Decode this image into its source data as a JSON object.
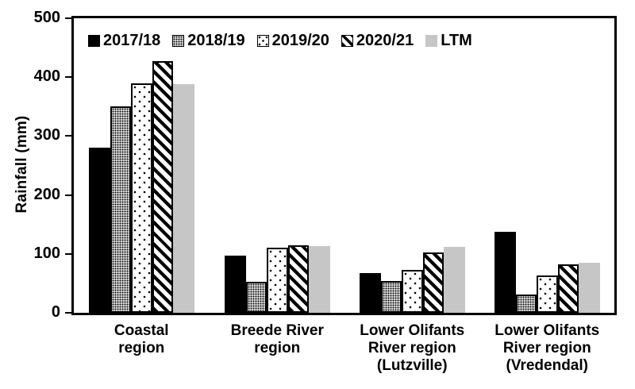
{
  "chart_data": {
    "type": "bar",
    "title": "",
    "xlabel": "",
    "ylabel": "Rainfall (mm)",
    "ylim": [
      0,
      500
    ],
    "y_tick_interval": 100,
    "y_tick_labels": [
      "0",
      "100",
      "200",
      "300",
      "400",
      "500"
    ],
    "grid": false,
    "legend_position": "top-left-inside",
    "categories": [
      "Coastal region",
      "Breede River region",
      "Lower Olifants River region (Lutzville)",
      "Lower Olifants River region (Vredendal)"
    ],
    "category_label_lines": [
      [
        "Coastal",
        "region"
      ],
      [
        "Breede River",
        "region"
      ],
      [
        "Lower Olifants",
        "River region",
        "(Lutzville)"
      ],
      [
        "Lower Olifants",
        "River region",
        "(Vredendal)"
      ]
    ],
    "series": [
      {
        "name": "2017/18",
        "pattern": "solid-black",
        "values": [
          280,
          97,
          68,
          138
        ]
      },
      {
        "name": "2018/19",
        "pattern": "dense-dots",
        "values": [
          350,
          52,
          54,
          31
        ]
      },
      {
        "name": "2019/20",
        "pattern": "sparse-dots",
        "values": [
          390,
          110,
          73,
          63
        ]
      },
      {
        "name": "2020/21",
        "pattern": "diagonal-hatch",
        "values": [
          427,
          115,
          102,
          82
        ]
      },
      {
        "name": "LTM",
        "pattern": "solid-gray",
        "values": [
          388,
          113,
          112,
          85
        ]
      }
    ],
    "colors": {
      "foreground": "#000000",
      "ltm_gray": "#c6c6c6",
      "background": "#ffffff"
    }
  }
}
